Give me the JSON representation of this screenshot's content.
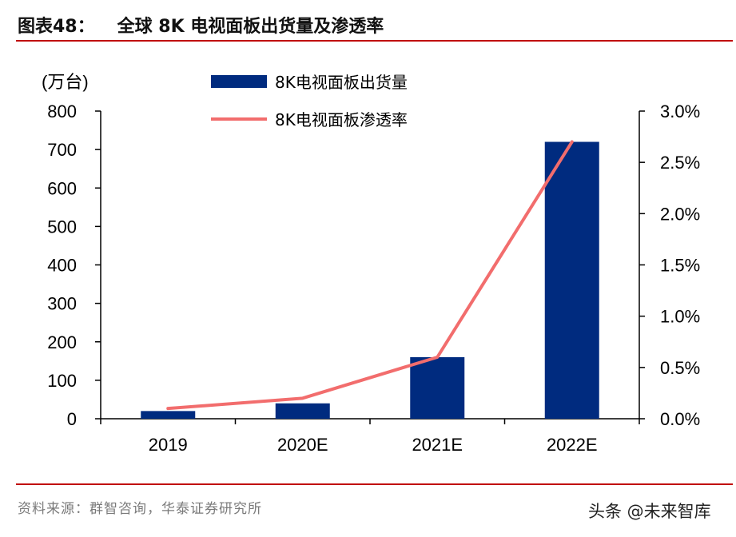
{
  "title": {
    "prefix": "图表48：",
    "text": "全球 8K 电视面板出货量及渗透率"
  },
  "source": "资料来源：群智咨询，华泰证券研究所",
  "watermark": "头条 @未来智库",
  "colors": {
    "bar": "#002b7f",
    "line": "#f26d6d",
    "rule": "#c00000"
  },
  "chart_data": {
    "type": "bar",
    "categories": [
      "2019",
      "2020E",
      "2021E",
      "2022E"
    ],
    "series": [
      {
        "name": "8K电视面板出货量",
        "type": "bar",
        "axis": "left",
        "values": [
          20,
          40,
          160,
          720
        ]
      },
      {
        "name": "8K电视面板渗透率",
        "type": "line",
        "axis": "right",
        "values": [
          0.1,
          0.2,
          0.6,
          2.7
        ]
      }
    ],
    "y_unit_label": "(万台)",
    "ylim_left": [
      0,
      800
    ],
    "yticks_left": [
      "0",
      "100",
      "200",
      "300",
      "400",
      "500",
      "600",
      "700",
      "800"
    ],
    "ylim_right": [
      0,
      3.0
    ],
    "yticks_right": [
      "0.0%",
      "0.5%",
      "1.0%",
      "1.5%",
      "2.0%",
      "2.5%",
      "3.0%"
    ],
    "grid": false,
    "legend": "top-center"
  }
}
